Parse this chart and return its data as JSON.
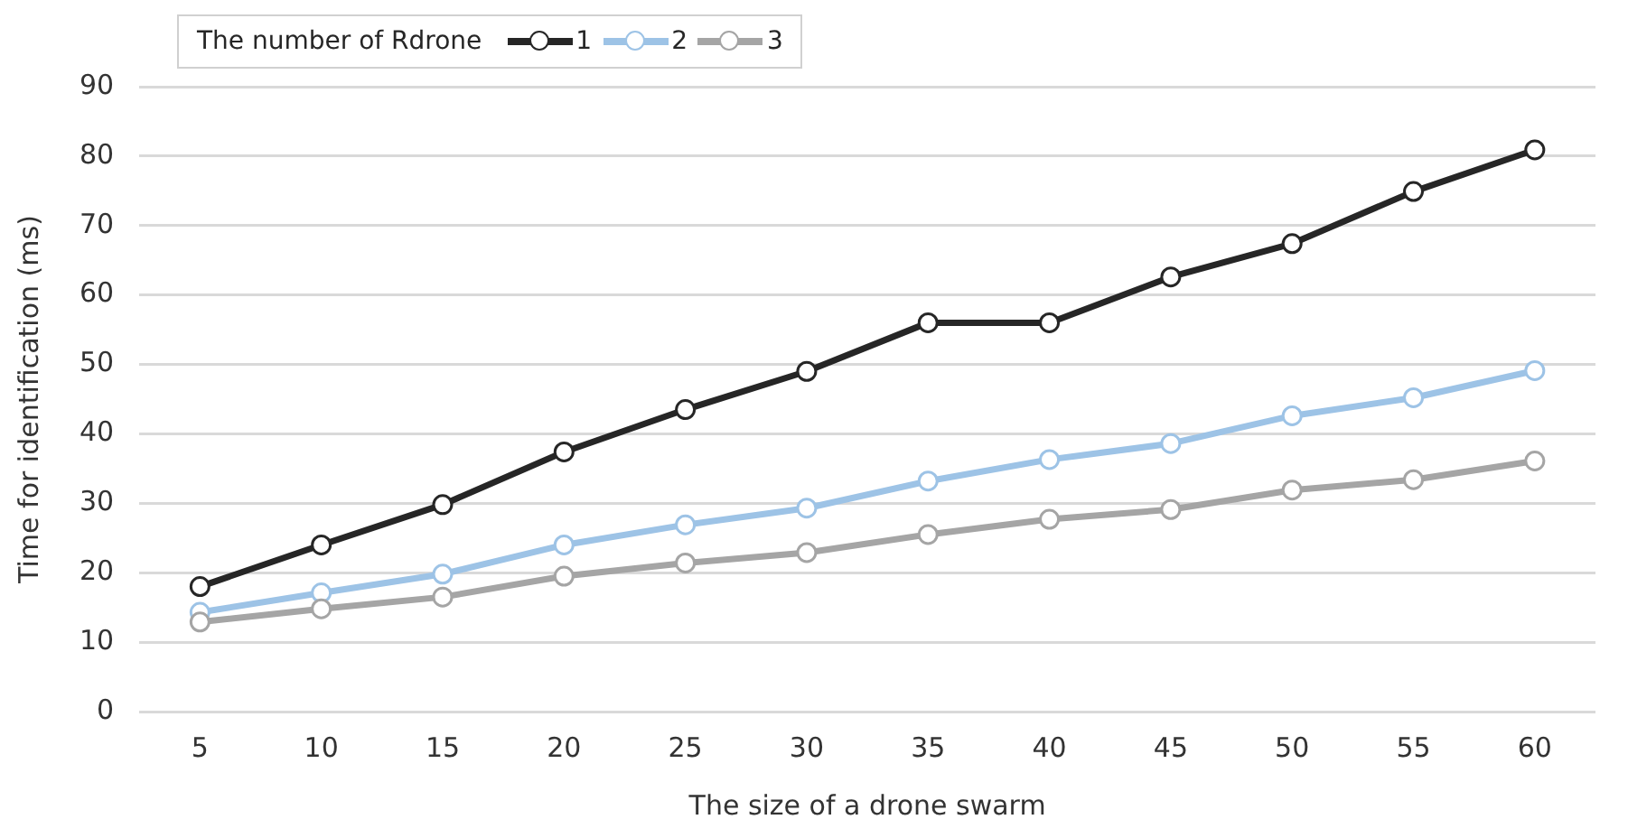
{
  "chart_data": {
    "type": "line",
    "xlabel": "The size of a drone swarm",
    "ylabel": "Time for identification (ms)",
    "legend_title": "The number of Rdrone",
    "categories": [
      "5",
      "10",
      "15",
      "20",
      "25",
      "30",
      "35",
      "40",
      "45",
      "50",
      "55",
      "60"
    ],
    "series": [
      {
        "name": "1",
        "color": "#262626",
        "values": [
          18.0,
          24.0,
          29.8,
          37.4,
          43.5,
          49.0,
          56.0,
          56.0,
          62.6,
          67.4,
          74.9,
          80.9
        ]
      },
      {
        "name": "2",
        "color": "#9dc3e6",
        "values": [
          14.3,
          17.1,
          19.8,
          24.0,
          26.9,
          29.3,
          33.2,
          36.3,
          38.6,
          42.6,
          45.2,
          49.1
        ]
      },
      {
        "name": "3",
        "color": "#a5a5a5",
        "values": [
          12.9,
          14.8,
          16.5,
          19.5,
          21.4,
          22.9,
          25.5,
          27.7,
          29.1,
          31.9,
          33.4,
          36.1
        ]
      }
    ],
    "ylim": [
      0,
      90
    ],
    "yticks": [
      0,
      10,
      20,
      30,
      40,
      50,
      60,
      70,
      80,
      90
    ],
    "grid": "y",
    "legend": "top left",
    "marker": "circle",
    "line_style": "solid"
  }
}
